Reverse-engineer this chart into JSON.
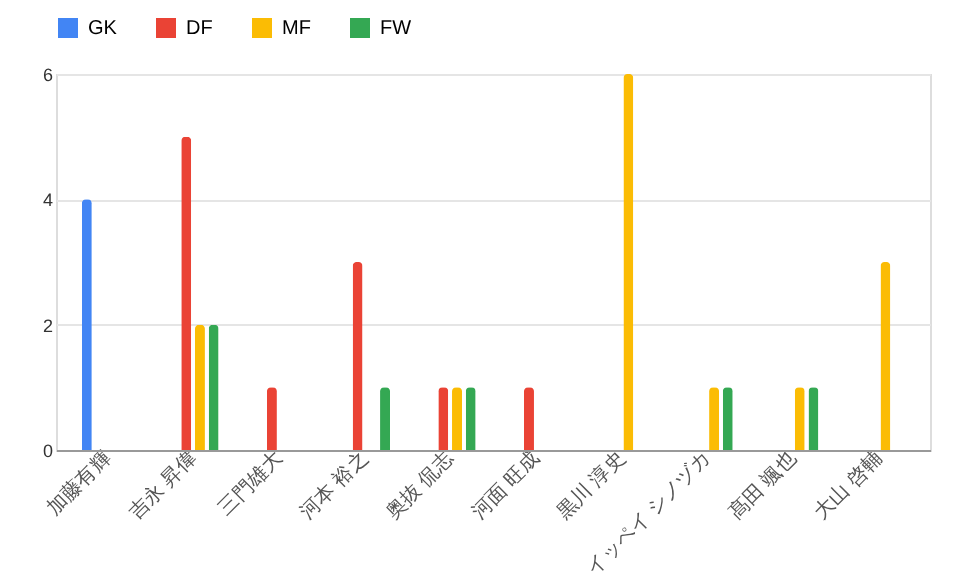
{
  "chart_data": {
    "type": "bar",
    "categories": [
      "加藤有輝",
      "吉永 昇偉",
      "三門雄大",
      "河本 裕之",
      "奥抜 侃志",
      "河面 旺成",
      "黒川 淳史",
      "イッペイ シノヅカ",
      "髙田 颯也",
      "大山 啓輔"
    ],
    "series": [
      {
        "name": "GK",
        "color": "#4285f4",
        "values": [
          4,
          null,
          null,
          null,
          null,
          null,
          null,
          null,
          null,
          null
        ]
      },
      {
        "name": "DF",
        "color": "#ea4335",
        "values": [
          null,
          5,
          1,
          3,
          1,
          1,
          null,
          null,
          null,
          null
        ]
      },
      {
        "name": "MF",
        "color": "#fbbc04",
        "values": [
          null,
          2,
          null,
          null,
          1,
          null,
          6,
          1,
          1,
          3
        ]
      },
      {
        "name": "FW",
        "color": "#34a853",
        "values": [
          null,
          2,
          null,
          1,
          1,
          null,
          null,
          1,
          1,
          null
        ]
      }
    ],
    "ylim": [
      0,
      6
    ],
    "yticks": [
      0,
      2,
      4,
      6
    ],
    "grid": "y",
    "legend": "top"
  }
}
